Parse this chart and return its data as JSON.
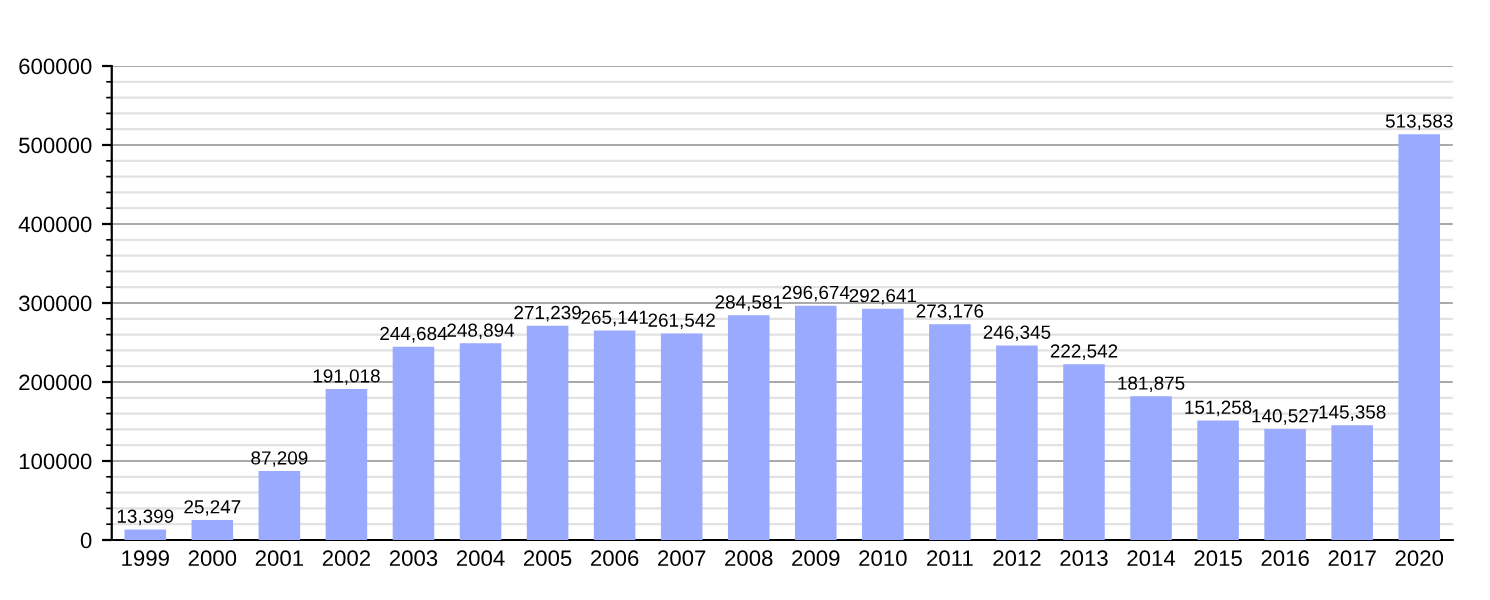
{
  "chart_data": {
    "type": "bar",
    "categories": [
      "1999",
      "2000",
      "2001",
      "2002",
      "2003",
      "2004",
      "2005",
      "2006",
      "2007",
      "2008",
      "2009",
      "2010",
      "2011",
      "2012",
      "2013",
      "2014",
      "2015",
      "2016",
      "2017",
      "2020"
    ],
    "values": [
      13399,
      25247,
      87209,
      191018,
      244684,
      248894,
      271239,
      265141,
      261542,
      284581,
      296674,
      292641,
      273176,
      246345,
      222542,
      181875,
      151258,
      140527,
      145358,
      513583
    ],
    "value_labels": [
      "13,399",
      "25,247",
      "87,209",
      "191,018",
      "244,684",
      "248,894",
      "271,239",
      "265,141",
      "261,542",
      "284,581",
      "296,674",
      "292,641",
      "273,176",
      "246,345",
      "222,542",
      "181,875",
      "151,258",
      "140,527",
      "145,358",
      "513,583"
    ],
    "color": "#99aaff",
    "ylim": [
      0,
      600000
    ],
    "yticks": [
      0,
      100000,
      200000,
      300000,
      400000,
      500000,
      600000
    ],
    "grid": "y",
    "legend": false
  }
}
